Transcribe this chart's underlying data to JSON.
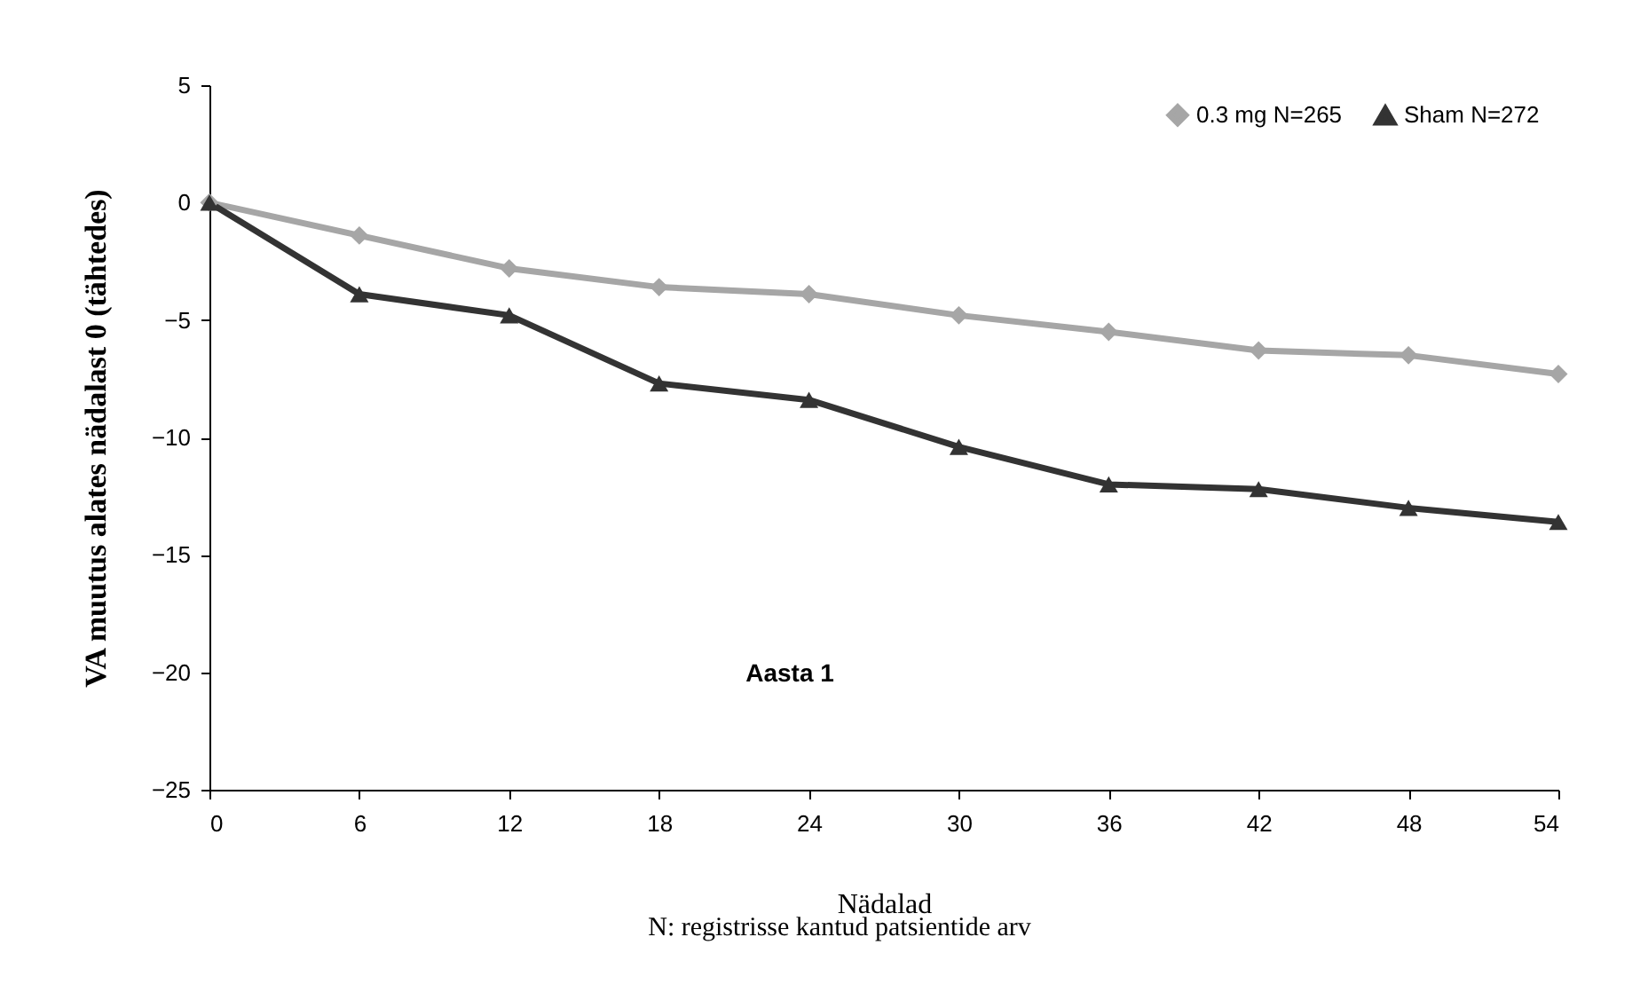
{
  "chart_data": {
    "type": "line",
    "xlabel": "Nädalad",
    "ylabel": "VA muutus alates nädalast 0 (tähtedes)",
    "x": [
      0,
      6,
      12,
      18,
      24,
      30,
      36,
      42,
      48,
      54
    ],
    "series": [
      {
        "name": "0.3 mg N=265",
        "color": "#a6a6a6",
        "marker": "diamond",
        "values": [
          0,
          -1.4,
          -2.8,
          -3.6,
          -3.9,
          -4.8,
          -5.5,
          -6.3,
          -6.5,
          -7.3
        ]
      },
      {
        "name": "Sham N=272",
        "color": "#333333",
        "marker": "triangle",
        "values": [
          0,
          -3.9,
          -4.8,
          -7.7,
          -8.4,
          -10.4,
          -12.0,
          -12.2,
          -13.0,
          -13.6
        ]
      }
    ],
    "xlim": [
      0,
      54
    ],
    "xticks": [
      0,
      6,
      12,
      18,
      24,
      30,
      36,
      42,
      48,
      54
    ],
    "ylim": [
      -25,
      5
    ],
    "yticks": [
      -25,
      -20,
      -15,
      -10,
      -5,
      0,
      5
    ],
    "grid": false,
    "legend": "top right",
    "line_style": "solid",
    "annotations": [
      "Aasta 1",
      "N: registrisse kantud patsientide arv"
    ]
  }
}
